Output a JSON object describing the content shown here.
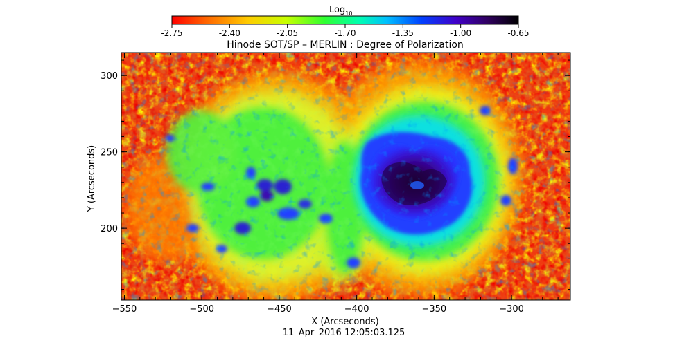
{
  "colorbar": {
    "label_main": "Log",
    "label_sub": "10",
    "ticks": [
      "-2.75",
      "-2.40",
      "-2.05",
      "-1.70",
      "-1.35",
      "-1.00",
      "-0.65"
    ],
    "range": [
      -2.75,
      -0.65
    ],
    "colormap": [
      "#ff0000",
      "#ff6600",
      "#ffbf00",
      "#c8ff00",
      "#40ff20",
      "#00ffa0",
      "#00c8ff",
      "#0040ff",
      "#4000c8",
      "#300060",
      "#000000"
    ]
  },
  "map": {
    "title": "Hinode SOT/SP – MERLIN : Degree of Polarization",
    "x_label": "X (Arcseconds)",
    "y_label": "Y (Arcseconds)",
    "x_ticks": [
      "-550",
      "-500",
      "-450",
      "-400",
      "-350",
      "-300"
    ],
    "y_ticks": [
      "200",
      "250",
      "300"
    ],
    "x_range": [
      -552,
      -262
    ],
    "y_range": [
      153,
      315
    ],
    "timestamp": "11–Apr–2016 12:05:03.125"
  }
}
